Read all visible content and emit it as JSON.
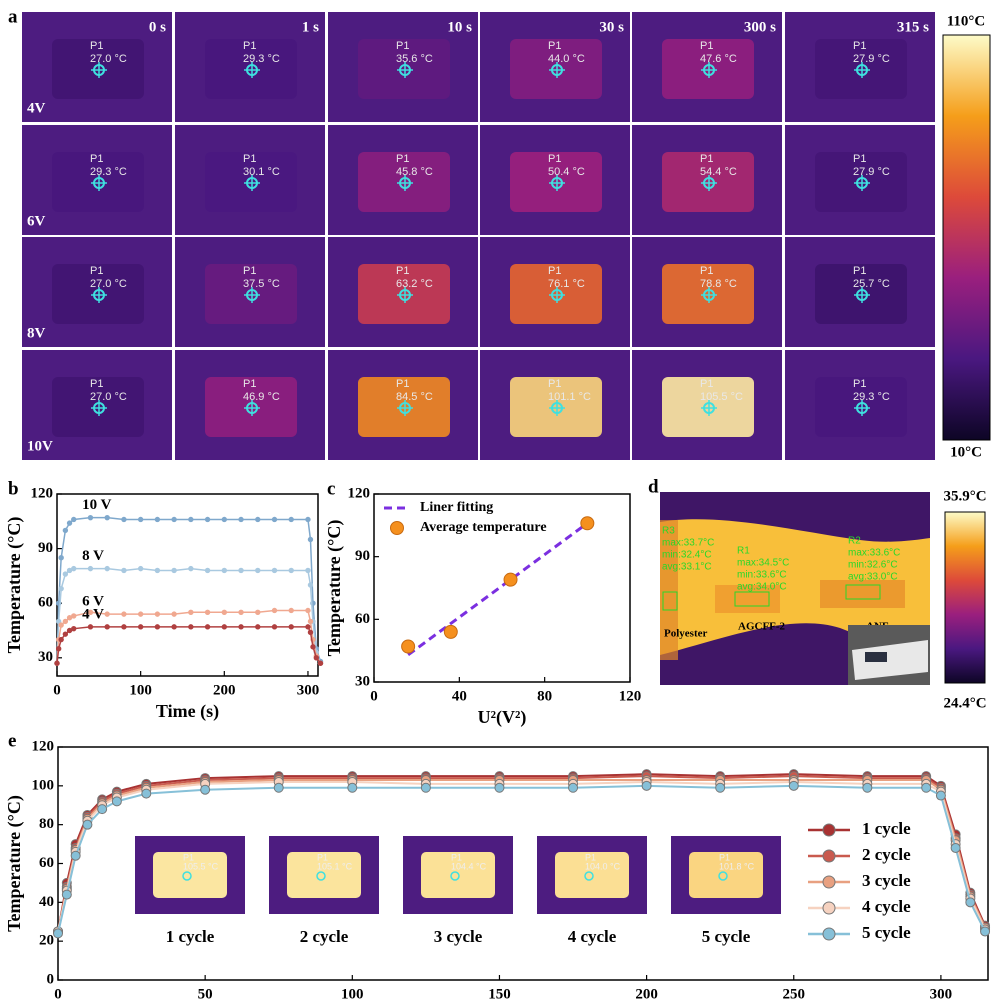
{
  "panel_letters": [
    "a",
    "b",
    "c",
    "d",
    "e"
  ],
  "panel_a": {
    "times": [
      "0 s",
      "1 s",
      "10 s",
      "30 s",
      "300 s",
      "315 s"
    ],
    "point_label": "P1",
    "rows": [
      {
        "label": "4V",
        "cells": [
          "27.0 °C",
          "29.3 °C",
          "35.6 °C",
          "44.0 °C",
          "47.6 °C",
          "27.9 °C"
        ]
      },
      {
        "label": "6V",
        "cells": [
          "29.3 °C",
          "30.1 °C",
          "45.8 °C",
          "50.4 °C",
          "54.4 °C",
          "27.9 °C"
        ]
      },
      {
        "label": "8V",
        "cells": [
          "27.0 °C",
          "37.5 °C",
          "63.2 °C",
          "76.1 °C",
          "78.8 °C",
          "25.7 °C"
        ]
      },
      {
        "label": "10V",
        "cells": [
          "27.0 °C",
          "46.9 °C",
          "84.5 °C",
          "101.1 °C",
          "105.5 °C",
          "29.3 °C"
        ]
      }
    ],
    "colorbar": {
      "max": "110°C",
      "min": "10°C"
    }
  },
  "chart_data": [
    {
      "type": "line",
      "x_label": "Time (s)",
      "y_label": "Temperature (°C)",
      "xlim": [
        0,
        312
      ],
      "xticks": [
        0,
        100,
        200,
        300
      ],
      "ylim": [
        20,
        120
      ],
      "yticks": [
        30,
        60,
        90,
        120
      ],
      "x": [
        0,
        2,
        5,
        10,
        15,
        20,
        40,
        60,
        80,
        100,
        120,
        140,
        160,
        180,
        200,
        220,
        240,
        260,
        280,
        300,
        303,
        306,
        310,
        315
      ],
      "series": [
        {
          "name": "10 V",
          "color": "#7fa8cc",
          "values": [
            27,
            60,
            85,
            100,
            104,
            106,
            107,
            107,
            106,
            106,
            106,
            106,
            106,
            106,
            106,
            106,
            106,
            106,
            106,
            106,
            95,
            60,
            35,
            28
          ]
        },
        {
          "name": "8 V",
          "color": "#a9c9e0",
          "values": [
            27,
            50,
            68,
            76,
            78,
            79,
            79,
            79,
            78,
            79,
            78,
            78,
            79,
            78,
            78,
            78,
            78,
            78,
            78,
            78,
            70,
            50,
            33,
            27
          ]
        },
        {
          "name": "6 V",
          "color": "#f0a890",
          "values": [
            27,
            40,
            48,
            50,
            52,
            53,
            55,
            54,
            54,
            54,
            54,
            54,
            55,
            55,
            55,
            55,
            55,
            56,
            56,
            56,
            50,
            40,
            31,
            27
          ]
        },
        {
          "name": "4 V",
          "color": "#b04040",
          "values": [
            27,
            35,
            40,
            43,
            45,
            46,
            47,
            47,
            47,
            47,
            47,
            47,
            47,
            47,
            47,
            47,
            47,
            47,
            47,
            47,
            44,
            36,
            30,
            27
          ]
        }
      ]
    },
    {
      "type": "scatter",
      "x_label": "U²(V²)",
      "y_label": "Temperature (°C)",
      "xlim": [
        0,
        120
      ],
      "xticks": [
        0,
        40,
        80,
        120
      ],
      "ylim": [
        30,
        120
      ],
      "yticks": [
        30,
        60,
        90,
        120
      ],
      "legend": "upper left",
      "series": [
        {
          "name": "Liner fitting",
          "color": "#7b2fe0",
          "mode": "line",
          "dash": true,
          "x": [
            16,
            100
          ],
          "values": [
            43,
            106
          ]
        },
        {
          "name": "Average temperature",
          "color": "#f5901e",
          "mode": "markers",
          "x": [
            16,
            36,
            64,
            100
          ],
          "values": [
            47,
            54,
            79,
            106
          ]
        }
      ]
    },
    {
      "type": "line",
      "y_label": "Temperature (°C)",
      "xlim": [
        0,
        316
      ],
      "xticks": [
        0,
        50,
        100,
        150,
        200,
        250,
        300
      ],
      "ylim": [
        0,
        120
      ],
      "yticks": [
        0,
        20,
        40,
        60,
        80,
        100,
        120
      ],
      "legend": "right",
      "x": [
        0,
        3,
        6,
        10,
        15,
        20,
        30,
        50,
        75,
        100,
        125,
        150,
        175,
        200,
        225,
        250,
        275,
        295,
        300,
        305,
        310,
        315
      ],
      "series": [
        {
          "name": "1 cycle",
          "color": "#a83232",
          "values": [
            25,
            50,
            70,
            85,
            93,
            97,
            101,
            104,
            105,
            105,
            105,
            105,
            105,
            106,
            105,
            106,
            105,
            105,
            100,
            75,
            45,
            28
          ]
        },
        {
          "name": "2 cycle",
          "color": "#c95a4e",
          "values": [
            25,
            48,
            68,
            84,
            92,
            96,
            100,
            103,
            104,
            104,
            104,
            104,
            104,
            105,
            104,
            105,
            104,
            104,
            99,
            73,
            44,
            27
          ]
        },
        {
          "name": "3 cycle",
          "color": "#e8a080",
          "values": [
            25,
            47,
            67,
            83,
            91,
            95,
            99,
            102,
            103,
            103,
            103,
            103,
            103,
            103,
            103,
            103,
            103,
            103,
            98,
            72,
            43,
            27
          ]
        },
        {
          "name": "4 cycle",
          "color": "#f6d2c0",
          "values": [
            25,
            46,
            66,
            82,
            90,
            94,
            98,
            101,
            102,
            102,
            101,
            101,
            101,
            102,
            101,
            102,
            101,
            101,
            97,
            70,
            42,
            26
          ]
        },
        {
          "name": "5 cycle",
          "color": "#86c0d8",
          "values": [
            24,
            44,
            64,
            80,
            88,
            92,
            96,
            98,
            99,
            99,
            99,
            99,
            99,
            100,
            99,
            100,
            99,
            99,
            95,
            68,
            40,
            25
          ]
        }
      ],
      "insets": [
        {
          "label": "1 cycle",
          "point": "P1",
          "temp": "105.5 °C"
        },
        {
          "label": "2 cycle",
          "point": "P1",
          "temp": "105.1 °C"
        },
        {
          "label": "3 cycle",
          "point": "P1",
          "temp": "104.4 °C"
        },
        {
          "label": "4 cycle",
          "point": "P1",
          "temp": "104.0 °C"
        },
        {
          "label": "5 cycle",
          "point": "P1",
          "temp": "101.8 °C"
        }
      ]
    }
  ],
  "panel_d": {
    "regions": [
      {
        "name": "R3",
        "max": "max:33.7°C",
        "min": "min:32.4°C",
        "avg": "avg:33.1°C"
      },
      {
        "name": "R1",
        "max": "max:34.5°C",
        "min": "min:33.6°C",
        "avg": "avg:34.0°C"
      },
      {
        "name": "R2",
        "max": "max:33.6°C",
        "min": "min:32.6°C",
        "avg": "avg:33.0°C"
      }
    ],
    "labels": [
      "Polyester",
      "AGCFF-2",
      "ANF"
    ],
    "colorbar": {
      "max": "35.9°C",
      "min": "24.4°C"
    }
  }
}
